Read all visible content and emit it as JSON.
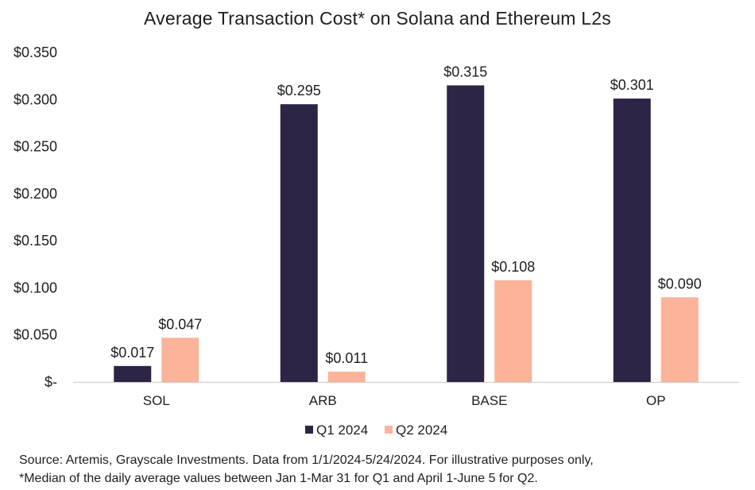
{
  "chart_data": {
    "type": "bar",
    "title": "Average Transaction Cost* on Solana and Ethereum L2s",
    "categories": [
      "SOL",
      "ARB",
      "BASE",
      "OP"
    ],
    "series": [
      {
        "name": "Q1 2024",
        "values": [
          0.017,
          0.295,
          0.315,
          0.301
        ],
        "labels": [
          "$0.017",
          "$0.295",
          "$0.315",
          "$0.301"
        ],
        "color": "#2e2446"
      },
      {
        "name": "Q2 2024",
        "values": [
          0.047,
          0.011,
          0.108,
          0.09
        ],
        "labels": [
          "$0.047",
          "$0.011",
          "$0.108",
          "$0.090"
        ],
        "color": "#fbb39a"
      }
    ],
    "ylim": [
      0,
      0.35
    ],
    "yticks": [
      0,
      0.05,
      0.1,
      0.15,
      0.2,
      0.25,
      0.3,
      0.35
    ],
    "ytick_labels": [
      "$-",
      "$0.050",
      "$0.100",
      "$0.150",
      "$0.200",
      "$0.250",
      "$0.300",
      "$0.350"
    ],
    "grid": false,
    "legend_position": "bottom-center"
  },
  "footnotes": [
    "Source: Artemis, Grayscale Investments. Data from 1/1/2024-5/24/2024. For illustrative purposes only,",
    "*Median of the daily average values between Jan 1-Mar 31 for Q1 and April 1-June 5 for Q2."
  ]
}
